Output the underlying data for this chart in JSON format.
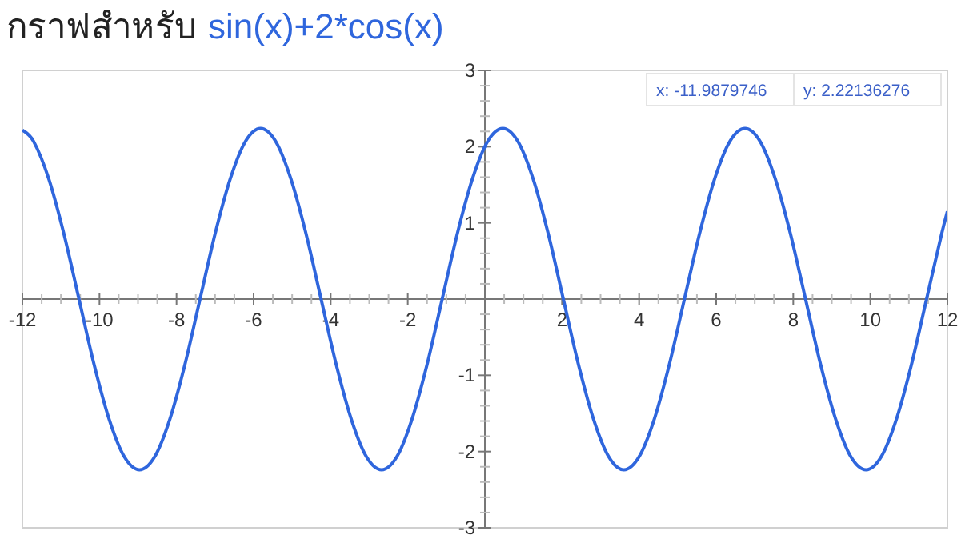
{
  "chart_data": {
    "type": "line",
    "title": "กราฟสำหรับ",
    "series": [
      {
        "name": "sin(x)+2*cos(x)",
        "color": "#2f66dd",
        "x": [
          -12,
          -11.71,
          -11.317,
          -10.925,
          -10.532,
          -10.139,
          -9.747,
          -9.354,
          -8.961,
          -8.568,
          -8.176,
          -7.783,
          -7.39,
          -6.998,
          -6.605,
          -6.212,
          -5.82,
          -5.427,
          -5.034,
          -4.641,
          -4.249,
          -3.856,
          -3.463,
          -3.071,
          -2.678,
          -2.285,
          -1.893,
          -1.5,
          -1.107,
          -0.714,
          -0.322,
          0.071,
          0.464,
          0.856,
          1.249,
          1.642,
          2.034,
          2.427,
          2.82,
          3.213,
          3.605,
          3.998,
          4.391,
          4.783,
          5.176,
          5.569,
          5.961,
          6.354,
          6.747,
          7.14,
          7.532,
          7.925,
          8.318,
          8.71,
          9.103,
          9.496,
          9.888,
          10.281,
          10.674,
          11.067,
          11.459,
          11.852,
          12
        ],
        "values": [
          2.22,
          2.07,
          1.58,
          0.86,
          0,
          -0.86,
          -1.58,
          -2.07,
          -2.24,
          -2.07,
          -1.58,
          -0.86,
          0,
          0.86,
          1.58,
          2.07,
          2.24,
          2.07,
          1.58,
          0.86,
          0,
          -0.86,
          -1.58,
          -2.07,
          -2.24,
          -2.07,
          -1.58,
          -0.86,
          0,
          0.86,
          1.58,
          2.07,
          2.24,
          2.07,
          1.58,
          0.86,
          0,
          -0.86,
          -1.58,
          -2.07,
          -2.24,
          -2.07,
          -1.58,
          -0.86,
          0,
          0.86,
          1.58,
          2.07,
          2.24,
          2.07,
          1.58,
          0.86,
          0,
          -0.86,
          -1.58,
          -2.07,
          -2.24,
          -2.07,
          -1.58,
          -0.86,
          0,
          0.86,
          1.15
        ]
      }
    ],
    "xlim": [
      -12,
      12
    ],
    "ylim": [
      -3,
      3
    ],
    "xticks": [
      -12,
      -10,
      -8,
      -6,
      -4,
      -2,
      {
        "value": 0,
        "label": null
      },
      2,
      4,
      6,
      8,
      10,
      12
    ],
    "yticks": [
      -3,
      -2,
      -1,
      {
        "value": 0,
        "label": null
      },
      1,
      2,
      3
    ],
    "annotations": [
      "x: -11.9879746",
      "y: 2.22136276"
    ]
  }
}
